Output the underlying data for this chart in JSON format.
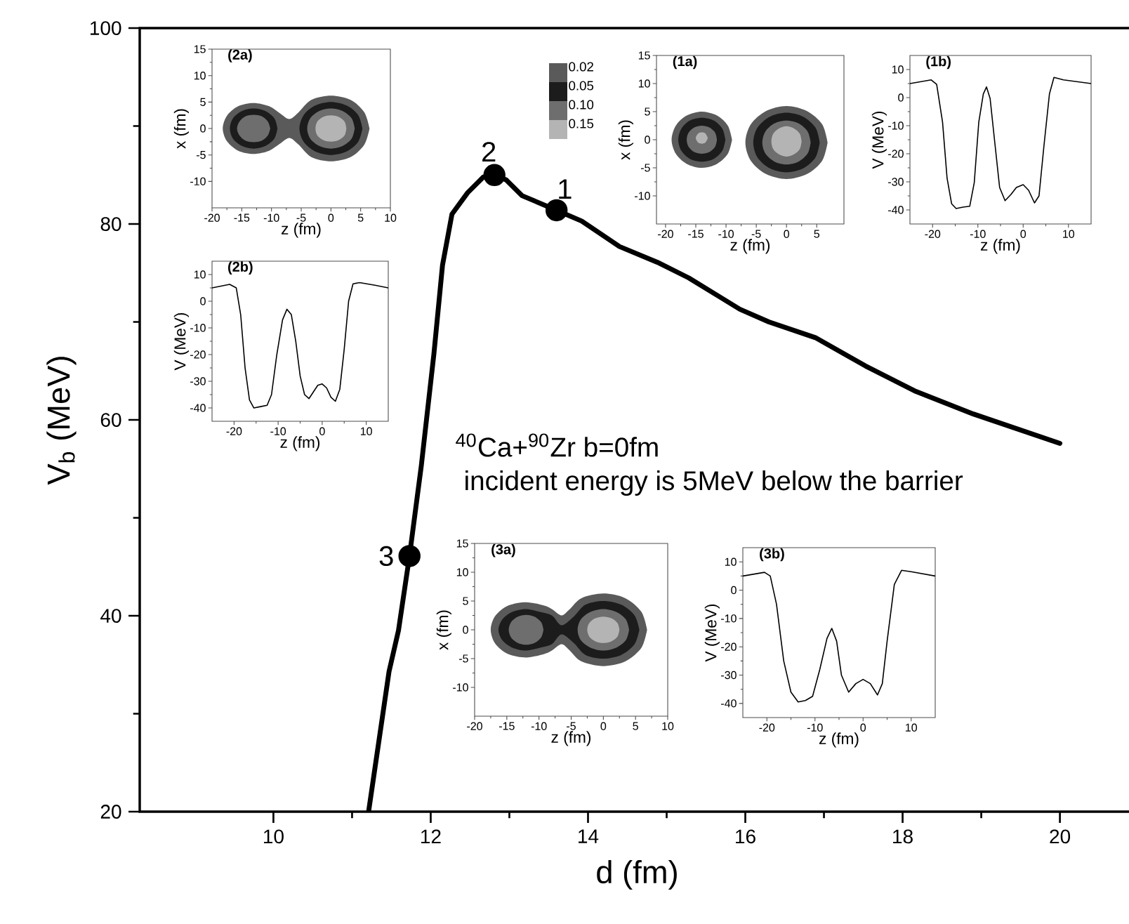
{
  "chart_data": [
    {
      "type": "line",
      "xlabel": "d (fm)",
      "ylabel": "V$_{b}$ (MeV)",
      "xlim": [
        8.3,
        20.95
      ],
      "ylim": [
        20,
        100
      ],
      "xticks": [
        10,
        12,
        14,
        16,
        18,
        20
      ],
      "yticks": [
        20,
        40,
        60,
        80,
        100
      ],
      "series": [
        {
          "type": "line",
          "marker": "none",
          "color": "#000000",
          "x": [
            11.21,
            11.47,
            11.59,
            11.73,
            11.88,
            12.04,
            12.15,
            12.27,
            12.47,
            12.67,
            12.81,
            12.96,
            13.16,
            13.6,
            13.92,
            14.4,
            14.88,
            15.28,
            15.93,
            16.3,
            16.89,
            17.53,
            18.17,
            18.9,
            20.0
          ],
          "values": [
            20,
            34.3,
            38.5,
            46.1,
            55.3,
            66.7,
            75.8,
            81,
            83.2,
            84.8,
            85.0,
            84.5,
            82.9,
            81.4,
            80.3,
            77.7,
            76.1,
            74.5,
            71.3,
            70,
            68.4,
            65.5,
            62.9,
            60.6,
            57.6
          ]
        },
        {
          "type": "scatter",
          "marker": "circle",
          "color": "#000000",
          "x": [
            13.6,
            12.81,
            11.73
          ],
          "values": [
            81.4,
            85.0,
            46.1
          ]
        }
      ],
      "annotations": [
        {
          "text": "1",
          "x": 13.6,
          "y": 81.4
        },
        {
          "text": "2",
          "x": 12.81,
          "y": 85.0
        },
        {
          "text": "3",
          "x": 11.73,
          "y": 46.1
        },
        "$^{40}$Ca+$^{90}$Zr   b=0fm",
        "incident energy is 5MeV below the barrier"
      ]
    },
    {
      "type": "area",
      "title": "(2a)",
      "xlabel": "z (fm)",
      "ylabel": "x (fm)",
      "xlim": [
        -20,
        10
      ],
      "ylim": [
        -15,
        15
      ],
      "xticks": [
        -20,
        -15,
        -10,
        -5,
        0,
        5,
        10
      ],
      "yticks": [
        -10,
        -5,
        0,
        5,
        10,
        15
      ],
      "series": [
        {
          "color": "#5a5a5a",
          "x": [
            6.5,
            5.6,
            3.3,
            0,
            -3.3,
            -5.5,
            -7,
            -8.6,
            -10.4,
            -13,
            -15.6,
            -17.5,
            -18.2,
            -17.5,
            -15.6,
            -13,
            -10.4,
            -8.6,
            -7,
            -5.5,
            -3.3,
            0,
            3.3,
            5.6
          ],
          "values": [
            0,
            3.1,
            5.4,
            6.2,
            5.4,
            3.0,
            1.8,
            2.9,
            4.2,
            4.8,
            4.2,
            2.4,
            0,
            -2.4,
            -4.2,
            -4.8,
            -4.2,
            -2.9,
            -1.8,
            -3.0,
            -5.4,
            -6.2,
            -5.4,
            -3.1
          ]
        },
        {
          "color": "#1c1c1c",
          "x": [
            -9,
            -9.5,
            -11,
            -13,
            -15,
            -16.5,
            -17,
            -16.5,
            -15,
            -13,
            -11,
            -9.5
          ],
          "values": [
            0,
            1.9,
            3.3,
            3.8,
            3.3,
            1.9,
            0,
            -1.9,
            -3.3,
            -3.8,
            -3.3,
            -1.9
          ]
        },
        {
          "color": "#1c1c1c",
          "x": [
            5.3,
            4.6,
            2.7,
            0,
            -2.7,
            -4.6,
            -5.3,
            -4.6,
            -2.7,
            0,
            2.7,
            4.6
          ],
          "values": [
            0,
            2.5,
            4.3,
            5,
            4.3,
            2.5,
            0,
            -2.5,
            -4.3,
            -5,
            -4.3,
            -2.5
          ]
        },
        {
          "color": "#6e6e6e",
          "x": [
            -10.2,
            -10.6,
            -11.6,
            -13,
            -14.4,
            -15.4,
            -15.8,
            -15.4,
            -14.4,
            -13,
            -11.6,
            -10.6
          ],
          "values": [
            0,
            1.3,
            2.3,
            2.6,
            2.3,
            1.3,
            0,
            -1.3,
            -2.3,
            -2.6,
            -2.3,
            -1.3
          ]
        },
        {
          "color": "#6e6e6e",
          "x": [
            4,
            3.5,
            2,
            0,
            -2,
            -3.5,
            -4,
            -3.5,
            -2,
            0,
            2,
            3.5
          ],
          "values": [
            0,
            1.9,
            3.3,
            3.8,
            3.3,
            1.9,
            0,
            -1.9,
            -3.3,
            -3.8,
            -3.3,
            -1.9
          ]
        },
        {
          "color": "#b4b4b4",
          "x": [
            2.6,
            2.3,
            1.3,
            0,
            -1.3,
            -2.3,
            -2.6,
            -2.3,
            -1.3,
            0,
            1.3,
            2.3
          ],
          "values": [
            0,
            1.3,
            2.2,
            2.5,
            2.2,
            1.3,
            0,
            -1.3,
            -2.2,
            -2.5,
            -2.2,
            -1.3
          ]
        }
      ]
    },
    {
      "type": "line",
      "title": "(2b)",
      "xlabel": "z (fm)",
      "ylabel": "V (MeV)",
      "xlim": [
        -25,
        15
      ],
      "ylim": [
        -45,
        15
      ],
      "xticks": [
        -20,
        -10,
        0,
        10
      ],
      "yticks": [
        -40,
        -30,
        -20,
        -10,
        0,
        10
      ],
      "series": [
        {
          "color": "#000000",
          "x": [
            -25,
            -21,
            -19.5,
            -18.5,
            -17.5,
            -16.5,
            -15.5,
            -14,
            -12.5,
            -11.5,
            -10.3,
            -9,
            -8,
            -7,
            -6,
            -5,
            -4,
            -3,
            -2,
            -1,
            0,
            1,
            2,
            3,
            4,
            5,
            6,
            7,
            8.5,
            12,
            15
          ],
          "values": [
            5,
            6.3,
            5,
            -5,
            -25,
            -37,
            -40,
            -39.5,
            -39,
            -35,
            -20,
            -7,
            -3,
            -5,
            -15,
            -28,
            -35,
            -36.5,
            -34,
            -31.5,
            -31,
            -32.5,
            -36,
            -37.5,
            -33,
            -18,
            0,
            6.5,
            7,
            6,
            5
          ]
        }
      ]
    },
    {
      "type": "area",
      "title": "(1a)",
      "xlabel": "z (fm)",
      "ylabel": "x (fm)",
      "xlim": [
        -21.5,
        9.5
      ],
      "ylim": [
        -15,
        15
      ],
      "xticks": [
        -20,
        -15,
        -10,
        -5,
        0,
        5
      ],
      "yticks": [
        -10,
        -5,
        0,
        5,
        10,
        15
      ],
      "legend": "left",
      "series": [
        {
          "name": "0.02",
          "color": "#5a5a5a",
          "x": [
            -9,
            -9.7,
            -11.5,
            -14,
            -16.5,
            -18.3,
            -19,
            -18.3,
            -16.5,
            -14,
            -11.5,
            -9.7
          ],
          "values": [
            0,
            2.5,
            4.3,
            5,
            4.3,
            2.5,
            0,
            -2.5,
            -4.3,
            -5,
            -4.3,
            -2.5
          ]
        },
        {
          "color": "#5a5a5a",
          "x": [
            6.8,
            5.9,
            3.4,
            0,
            -3.4,
            -5.9,
            -6.8,
            -5.9,
            -3.4,
            0,
            3.4,
            5.9
          ],
          "values": [
            -0.5,
            2.75,
            5.1,
            6,
            5.1,
            2.75,
            -0.5,
            -3.75,
            -6.1,
            -7,
            -6.1,
            -3.75
          ]
        },
        {
          "name": "0.05",
          "color": "#1c1c1c",
          "x": [
            -10.1,
            -10.6,
            -12,
            -14,
            -16,
            -17.4,
            -17.9,
            -17.4,
            -16,
            -14,
            -12,
            -10.6
          ],
          "values": [
            0,
            1.95,
            3.4,
            3.9,
            3.4,
            1.95,
            0,
            -1.95,
            -3.4,
            -3.9,
            -3.4,
            -1.95
          ]
        },
        {
          "color": "#1c1c1c",
          "x": [
            5.5,
            4.8,
            2.75,
            0,
            -2.75,
            -4.8,
            -5.5,
            -4.8,
            -2.75,
            0,
            2.75,
            4.8
          ],
          "values": [
            -0.5,
            2.15,
            4.1,
            4.8,
            4.1,
            2.15,
            -0.5,
            -3.15,
            -5.1,
            -5.8,
            -5.1,
            -3.15
          ]
        },
        {
          "name": "0.10",
          "color": "#6e6e6e",
          "x": [
            -11.5,
            -11.8,
            -12.75,
            -14,
            -15.25,
            -16.2,
            -16.5,
            -16.2,
            -15.25,
            -14,
            -12.75,
            -11.8
          ],
          "values": [
            0,
            1.25,
            2.2,
            2.5,
            2.2,
            1.25,
            0,
            -1.25,
            -2.2,
            -2.5,
            -2.2,
            -1.25
          ]
        },
        {
          "color": "#6e6e6e",
          "x": [
            4,
            3.5,
            2,
            0,
            -2,
            -3.5,
            -4,
            -3.5,
            -2,
            0,
            2,
            3.5
          ],
          "values": [
            -0.5,
            1.45,
            2.9,
            3.4,
            2.9,
            1.45,
            -0.5,
            -2.45,
            -3.9,
            -4.4,
            -3.9,
            -2.45
          ]
        },
        {
          "name": "0.15",
          "color": "#b4b4b4",
          "x": [
            -13,
            -13.5,
            -14.5,
            -15,
            -14.5,
            -13.5
          ],
          "values": [
            0.3,
            1.2,
            1.2,
            0.3,
            -0.6,
            -0.6
          ]
        },
        {
          "color": "#b4b4b4",
          "x": [
            2.5,
            2.2,
            1.25,
            0,
            -1.25,
            -2.2,
            -2.5,
            -2.2,
            -1.25,
            0,
            1.25,
            2.2
          ],
          "values": [
            -0.3,
            1.05,
            2.0,
            2.4,
            2.0,
            1.05,
            -0.3,
            -1.65,
            -2.6,
            -3.0,
            -2.6,
            -1.65
          ]
        }
      ]
    },
    {
      "type": "line",
      "title": "(1b)",
      "xlabel": "z (fm)",
      "ylabel": "V (MeV)",
      "xlim": [
        -25,
        15
      ],
      "ylim": [
        -45,
        15
      ],
      "xticks": [
        -20,
        -10,
        0,
        10
      ],
      "yticks": [
        -40,
        -30,
        -20,
        -10,
        0,
        10
      ],
      "series": [
        {
          "color": "#000000",
          "x": [
            -25,
            -20.3,
            -19.1,
            -17.8,
            -16.8,
            -15.8,
            -14.8,
            -13.3,
            -11.8,
            -10.8,
            -9.8,
            -8.8,
            -8.1,
            -7.3,
            -6.2,
            -5.2,
            -4,
            -2.7,
            -1.5,
            0,
            1.2,
            2.5,
            3.5,
            4.6,
            5.8,
            6.8,
            8.9,
            15
          ],
          "values": [
            5,
            6.3,
            4.7,
            -8.7,
            -28.7,
            -37.8,
            -39.5,
            -39,
            -38.7,
            -30.3,
            -8.7,
            1.3,
            3.8,
            -0.3,
            -17,
            -32,
            -36.7,
            -34.5,
            -32,
            -31,
            -33,
            -37.5,
            -35,
            -17,
            1.3,
            7.2,
            6.3,
            5
          ]
        }
      ]
    },
    {
      "type": "area",
      "title": "(3a)",
      "xlabel": "z (fm)",
      "ylabel": "x (fm)",
      "xlim": [
        -20,
        10
      ],
      "ylim": [
        -15,
        15
      ],
      "xticks": [
        -20,
        -15,
        -10,
        -5,
        0,
        5,
        10
      ],
      "yticks": [
        -10,
        -5,
        0,
        5,
        10,
        15
      ],
      "series": [
        {
          "color": "#5a5a5a",
          "x": [
            6.8,
            5.9,
            3.4,
            0,
            -3.4,
            -5.3,
            -6.5,
            -8,
            -9.2,
            -12,
            -14.8,
            -16.8,
            -17.5,
            -16.8,
            -14.8,
            -12,
            -9.2,
            -8,
            -6.5,
            -5.3,
            -3.4,
            0,
            3.4,
            5.9
          ],
          "values": [
            0,
            3.15,
            5.5,
            6.3,
            5.5,
            3.5,
            2.5,
            3.6,
            4.2,
            4.8,
            4.2,
            2.4,
            0,
            -2.4,
            -4.2,
            -4.8,
            -4.2,
            -3.6,
            -2.5,
            -3.5,
            -5.5,
            -6.3,
            -5.5,
            -3.15
          ]
        },
        {
          "color": "#1c1c1c",
          "x": [
            5.6,
            4.85,
            2.8,
            0,
            -2.8,
            -4.6,
            -6.5,
            -8,
            -9.85,
            -12,
            -14.15,
            -15.7,
            -16.3,
            -15.7,
            -14.15,
            -12,
            -9.85,
            -8,
            -6.5,
            -4.6,
            -2.8,
            0,
            2.8,
            4.85
          ],
          "values": [
            0,
            2.5,
            4.35,
            5,
            4.35,
            2.3,
            0.8,
            2.5,
            3.1,
            3.6,
            3.1,
            1.8,
            0,
            -1.8,
            -3.1,
            -3.6,
            -3.1,
            -2.5,
            -0.8,
            -2.3,
            -4.35,
            -5,
            -4.35,
            -2.5
          ]
        },
        {
          "color": "#6e6e6e",
          "x": [
            -9.3,
            -9.65,
            -10.65,
            -12,
            -13.35,
            -14.35,
            -14.7,
            -14.35,
            -13.35,
            -12,
            -10.65,
            -9.65
          ],
          "values": [
            0,
            1.3,
            2.25,
            2.6,
            2.25,
            1.3,
            0,
            -1.3,
            -2.25,
            -2.6,
            -2.25,
            -1.3
          ]
        },
        {
          "color": "#6e6e6e",
          "x": [
            4,
            3.5,
            2,
            0,
            -2,
            -3.5,
            -4,
            -3.5,
            -2,
            0,
            2,
            3.5
          ],
          "values": [
            0,
            1.8,
            3.1,
            3.6,
            3.1,
            1.8,
            0,
            -1.8,
            -3.1,
            -3.6,
            -3.1,
            -1.8
          ]
        },
        {
          "color": "#b4b4b4",
          "x": [
            2.5,
            2.2,
            1.25,
            0,
            -1.25,
            -2.2,
            -2.5,
            -2.2,
            -1.25,
            0,
            1.25,
            2.2
          ],
          "values": [
            0,
            1.15,
            2,
            2.3,
            2,
            1.15,
            0,
            -1.15,
            -2,
            -2.3,
            -2,
            -1.15
          ]
        }
      ]
    },
    {
      "type": "line",
      "title": "(3b)",
      "xlabel": "z (fm)",
      "ylabel": "V (MeV)",
      "xlim": [
        -25,
        15
      ],
      "ylim": [
        -45,
        15
      ],
      "xticks": [
        -20,
        -10,
        0,
        10
      ],
      "yticks": [
        -40,
        -30,
        -20,
        -10,
        0,
        10
      ],
      "series": [
        {
          "color": "#000000",
          "x": [
            -25,
            -20.5,
            -19.3,
            -18,
            -16.5,
            -15,
            -13.5,
            -12,
            -10.5,
            -9,
            -7.5,
            -6.5,
            -5.5,
            -4.5,
            -3,
            -1.5,
            0,
            1.5,
            3,
            4,
            5,
            6.5,
            8,
            10,
            15
          ],
          "values": [
            5,
            6.3,
            5,
            -5,
            -25,
            -36,
            -39.5,
            -39,
            -37.5,
            -28,
            -17,
            -13.5,
            -18,
            -30,
            -36,
            -33,
            -31.5,
            -33,
            -37,
            -33,
            -18,
            2,
            7,
            6.5,
            5
          ]
        }
      ]
    }
  ]
}
